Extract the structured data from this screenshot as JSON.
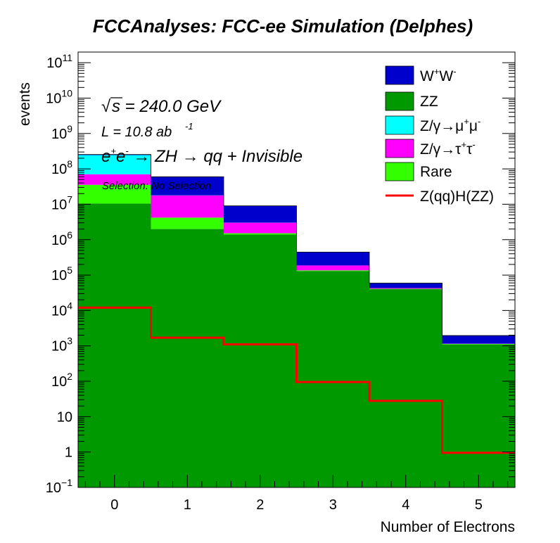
{
  "chart_data": {
    "type": "bar",
    "stacked": true,
    "title": "FCCAnalyses: FCC-ee Simulation (Delphes)",
    "xlabel": "Number of Electrons",
    "ylabel": "events",
    "yscale": "log",
    "xlim": [
      -0.5,
      5.5
    ],
    "ylim": [
      0.1,
      200000000000.0
    ],
    "x_ticks": [
      0,
      1,
      2,
      3,
      4,
      5
    ],
    "x_tick_labels": [
      "0",
      "1",
      "2",
      "3",
      "4",
      "5"
    ],
    "bins": [
      0,
      1,
      2,
      3,
      4,
      5
    ],
    "y_ticks": [
      {
        "value": 0.1,
        "base": "10",
        "exp": "−1"
      },
      {
        "value": 1,
        "base": "1",
        "exp": ""
      },
      {
        "value": 10,
        "base": "10",
        "exp": ""
      },
      {
        "value": 100,
        "base": "10",
        "exp": "2"
      },
      {
        "value": 1000,
        "base": "10",
        "exp": "3"
      },
      {
        "value": 10000.0,
        "base": "10",
        "exp": "4"
      },
      {
        "value": 100000.0,
        "base": "10",
        "exp": "5"
      },
      {
        "value": 1000000.0,
        "base": "10",
        "exp": "6"
      },
      {
        "value": 10000000.0,
        "base": "10",
        "exp": "7"
      },
      {
        "value": 100000000.0,
        "base": "10",
        "exp": "8"
      },
      {
        "value": 1000000000.0,
        "base": "10",
        "exp": "9"
      },
      {
        "value": 10000000000.0,
        "base": "10",
        "exp": "10"
      },
      {
        "value": 100000000000.0,
        "base": "10",
        "exp": "11"
      }
    ],
    "stack_series_bottom_to_top": [
      {
        "name": "ZZ",
        "color": "#009900",
        "values": [
          10500000.0,
          2000000.0,
          1400000.0,
          130000.0,
          40000.0,
          1100.0
        ]
      },
      {
        "name": "Rare",
        "color": "#33ff00",
        "values": [
          25000000.0,
          2200000.0,
          120000.0,
          6000.0,
          1000.0,
          30
        ]
      },
      {
        "name": "Z/γ→τ⁺τ⁻",
        "color": "#ff00ff",
        "values": [
          35000000.0,
          13500000.0,
          1500000.0,
          50000.0,
          2000.0,
          20
        ]
      },
      {
        "name": "Z/γ→μ⁺μ⁻",
        "color": "#00ffff",
        "values": [
          175000000.0,
          200000.0,
          20000.0,
          1000.0,
          50,
          5
        ]
      },
      {
        "name": "W⁺W⁻",
        "color": "#0000cc",
        "values": [
          10000000.0,
          42000000.0,
          6000000.0,
          260000.0,
          16000.0,
          800
        ]
      }
    ],
    "signal": {
      "name": "Z(qq)H(ZZ)",
      "color": "#ff0000",
      "values": [
        12000.0,
        1700,
        1100,
        95,
        28,
        0.95
      ]
    },
    "legend_position": "top-right"
  },
  "legend": [
    {
      "pre": "W",
      "sup1": "+",
      "mid": "W",
      "sup2": "-",
      "post": "",
      "sup3": ""
    },
    {
      "pre": "ZZ",
      "sup1": "",
      "mid": "",
      "sup2": "",
      "post": "",
      "sup3": ""
    },
    {
      "pre": "Z/γ→μ",
      "sup1": "+",
      "mid": "μ",
      "sup2": "-",
      "post": "",
      "sup3": ""
    },
    {
      "pre": "Z/γ→τ",
      "sup1": "+",
      "mid": "τ",
      "sup2": "-",
      "post": "",
      "sup3": ""
    },
    {
      "pre": "Rare",
      "sup1": "",
      "mid": "",
      "sup2": "",
      "post": "",
      "sup3": ""
    },
    {
      "pre": "Z(qq)H(ZZ)",
      "sup1": "",
      "mid": "",
      "sup2": "",
      "post": "",
      "sup3": ""
    }
  ],
  "annotations": {
    "sqrt_symbol": "√",
    "energy_text": "s = 240.0 GeV",
    "lumi_text": "L = 10.8 ab",
    "lumi_sup": "-1",
    "process_e": "e",
    "process_plus": "+",
    "process_e2": "e",
    "process_minus": "-",
    "process_rest": " → ZH  → qq + Invisible",
    "selection": "Selection: No Selection"
  }
}
